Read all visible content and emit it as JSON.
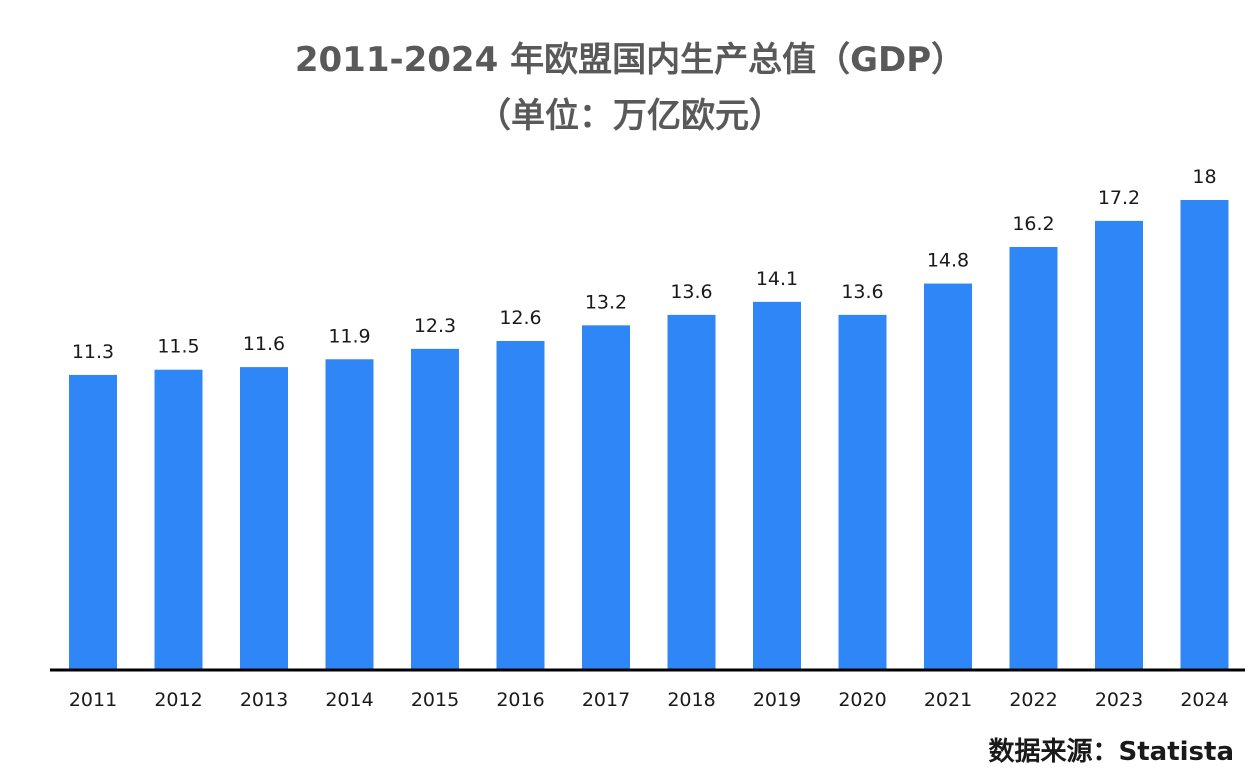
{
  "chart_data": {
    "type": "bar",
    "title": "2011-2024 年欧盟国内生产总值（GDP）",
    "subtitle": "（单位：万亿欧元）",
    "categories": [
      "2011",
      "2012",
      "2013",
      "2014",
      "2015",
      "2016",
      "2017",
      "2018",
      "2019",
      "2020",
      "2021",
      "2022",
      "2023",
      "2024"
    ],
    "values": [
      11.3,
      11.5,
      11.6,
      11.9,
      12.3,
      12.6,
      13.2,
      13.6,
      14.1,
      13.6,
      14.8,
      16.2,
      17.2,
      18
    ],
    "value_labels": [
      "11.3",
      "11.5",
      "11.6",
      "11.9",
      "12.3",
      "12.6",
      "13.2",
      "13.6",
      "14.1",
      "13.6",
      "14.8",
      "16.2",
      "17.2",
      "18"
    ],
    "ylim": [
      0,
      18
    ],
    "bar_color": "#2f86f6",
    "grid": false,
    "legend": "none"
  },
  "source": "数据来源：Statista"
}
